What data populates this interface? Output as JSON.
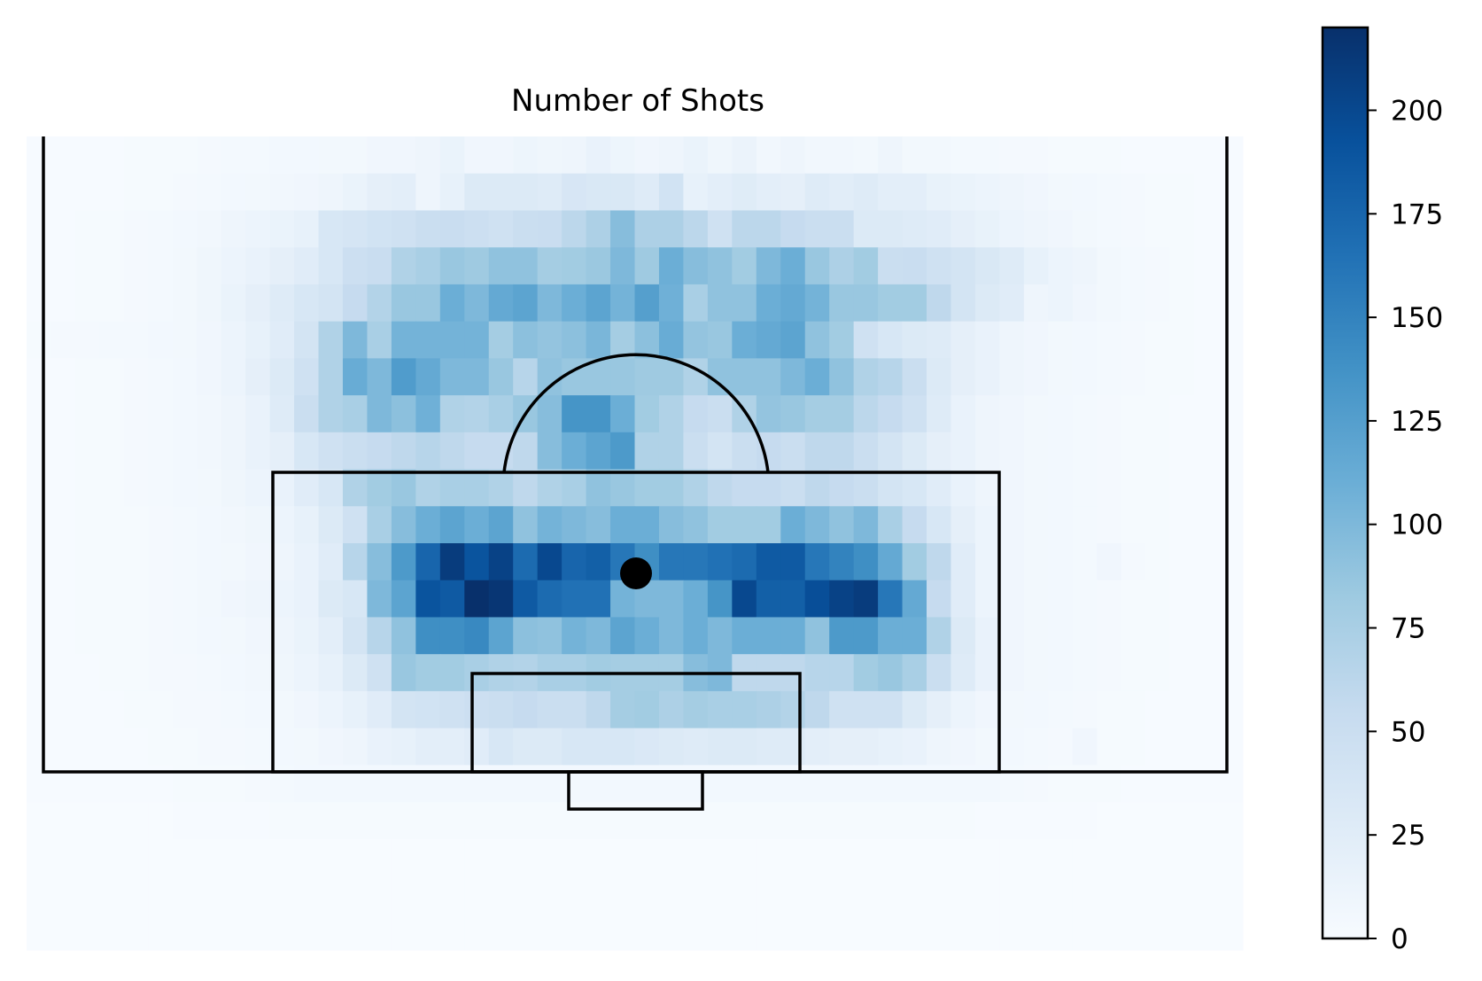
{
  "chart_data": {
    "type": "heatmap",
    "title": "Number of Shots",
    "colormap": "Blues",
    "colorbar": {
      "ticks": [
        0,
        25,
        50,
        75,
        100,
        125,
        150,
        175,
        200
      ],
      "tick_labels": [
        "0",
        "25",
        "50",
        "75",
        "100",
        "125",
        "150",
        "175",
        "200"
      ],
      "vmin": 0,
      "vmax": 220
    },
    "grid": {
      "columns": 50,
      "rows": 22
    },
    "values": [
      [
        1,
        1,
        1,
        1,
        2,
        2,
        2,
        3,
        4,
        4,
        5,
        5,
        6,
        6,
        8,
        8,
        10,
        14,
        8,
        8,
        11,
        9,
        10,
        15,
        11,
        8,
        10,
        14,
        9,
        13,
        7,
        10,
        7,
        7,
        6,
        10,
        6,
        6,
        4,
        4,
        3,
        3,
        2,
        2,
        2,
        1,
        1,
        1,
        1,
        1
      ],
      [
        1,
        1,
        1,
        1,
        2,
        2,
        3,
        4,
        5,
        6,
        7,
        8,
        10,
        14,
        20,
        22,
        10,
        18,
        30,
        30,
        30,
        28,
        36,
        33,
        33,
        28,
        42,
        18,
        22,
        26,
        22,
        20,
        28,
        24,
        28,
        22,
        22,
        16,
        14,
        12,
        10,
        8,
        6,
        5,
        4,
        3,
        2,
        2,
        1,
        1
      ],
      [
        1,
        1,
        2,
        2,
        3,
        4,
        5,
        7,
        10,
        12,
        14,
        18,
        35,
        38,
        42,
        45,
        50,
        52,
        48,
        45,
        50,
        52,
        62,
        72,
        95,
        72,
        72,
        62,
        45,
        62,
        62,
        55,
        50,
        50,
        30,
        30,
        28,
        25,
        20,
        16,
        12,
        10,
        8,
        6,
        4,
        3,
        2,
        2,
        1,
        1
      ],
      [
        1,
        1,
        2,
        2,
        3,
        4,
        6,
        9,
        12,
        15,
        20,
        25,
        35,
        48,
        52,
        70,
        75,
        85,
        82,
        90,
        90,
        78,
        80,
        84,
        100,
        82,
        110,
        95,
        90,
        80,
        100,
        110,
        85,
        72,
        80,
        50,
        52,
        45,
        40,
        33,
        28,
        18,
        12,
        10,
        6,
        4,
        3,
        2,
        1,
        1
      ],
      [
        1,
        1,
        2,
        2,
        3,
        4,
        6,
        9,
        14,
        20,
        28,
        35,
        40,
        55,
        68,
        85,
        85,
        110,
        100,
        115,
        120,
        100,
        110,
        120,
        105,
        125,
        108,
        75,
        90,
        90,
        110,
        115,
        105,
        85,
        85,
        80,
        80,
        60,
        40,
        30,
        25,
        10,
        12,
        8,
        6,
        4,
        3,
        2,
        1,
        1
      ],
      [
        2,
        3,
        3,
        4,
        4,
        5,
        6,
        8,
        12,
        18,
        25,
        40,
        70,
        100,
        75,
        105,
        105,
        105,
        105,
        78,
        92,
        88,
        92,
        102,
        78,
        92,
        112,
        88,
        85,
        110,
        115,
        120,
        90,
        80,
        45,
        35,
        30,
        28,
        20,
        15,
        10,
        8,
        6,
        5,
        4,
        3,
        2,
        2,
        1,
        1
      ],
      [
        1,
        1,
        2,
        2,
        3,
        4,
        5,
        8,
        12,
        20,
        30,
        45,
        70,
        112,
        100,
        128,
        115,
        100,
        100,
        85,
        65,
        90,
        85,
        85,
        85,
        82,
        82,
        70,
        90,
        90,
        90,
        100,
        110,
        90,
        70,
        65,
        50,
        30,
        20,
        15,
        10,
        8,
        6,
        5,
        4,
        3,
        2,
        2,
        1,
        1
      ],
      [
        1,
        1,
        2,
        2,
        3,
        4,
        5,
        7,
        10,
        15,
        28,
        50,
        70,
        75,
        100,
        92,
        108,
        70,
        68,
        75,
        85,
        95,
        135,
        135,
        110,
        80,
        70,
        55,
        50,
        70,
        88,
        85,
        78,
        78,
        62,
        55,
        45,
        28,
        15,
        10,
        8,
        6,
        5,
        4,
        3,
        2,
        2,
        1,
        1,
        1
      ],
      [
        1,
        1,
        2,
        2,
        3,
        4,
        5,
        7,
        10,
        15,
        20,
        35,
        45,
        50,
        55,
        60,
        65,
        60,
        55,
        55,
        60,
        95,
        110,
        120,
        130,
        70,
        70,
        50,
        40,
        50,
        55,
        50,
        60,
        60,
        50,
        40,
        30,
        20,
        15,
        10,
        8,
        6,
        5,
        4,
        3,
        2,
        2,
        1,
        1,
        1
      ],
      [
        1,
        1,
        2,
        2,
        3,
        4,
        5,
        6,
        9,
        12,
        15,
        25,
        35,
        70,
        80,
        85,
        70,
        75,
        75,
        70,
        60,
        70,
        75,
        90,
        85,
        80,
        80,
        70,
        60,
        55,
        55,
        50,
        60,
        55,
        50,
        40,
        35,
        25,
        15,
        10,
        8,
        6,
        5,
        4,
        3,
        2,
        2,
        1,
        1,
        1
      ],
      [
        1,
        1,
        2,
        2,
        2,
        3,
        4,
        5,
        7,
        9,
        12,
        18,
        30,
        45,
        75,
        95,
        110,
        120,
        110,
        120,
        90,
        105,
        100,
        95,
        110,
        110,
        95,
        90,
        80,
        80,
        80,
        110,
        100,
        90,
        100,
        75,
        55,
        35,
        20,
        12,
        8,
        6,
        5,
        4,
        3,
        2,
        2,
        1,
        1,
        1
      ],
      [
        1,
        1,
        2,
        2,
        2,
        3,
        4,
        5,
        6,
        8,
        10,
        15,
        25,
        65,
        95,
        130,
        175,
        210,
        190,
        205,
        170,
        200,
        175,
        180,
        160,
        140,
        160,
        160,
        165,
        170,
        185,
        185,
        160,
        150,
        140,
        115,
        80,
        60,
        25,
        12,
        8,
        6,
        5,
        4,
        8,
        3,
        2,
        1,
        1,
        1
      ],
      [
        1,
        1,
        2,
        2,
        2,
        3,
        4,
        6,
        8,
        10,
        12,
        15,
        30,
        35,
        100,
        120,
        190,
        185,
        220,
        215,
        185,
        170,
        165,
        165,
        105,
        100,
        100,
        110,
        135,
        200,
        180,
        180,
        195,
        205,
        210,
        160,
        115,
        55,
        25,
        12,
        8,
        6,
        5,
        4,
        3,
        2,
        2,
        1,
        1,
        1
      ],
      [
        1,
        1,
        2,
        2,
        2,
        3,
        4,
        5,
        6,
        8,
        10,
        14,
        22,
        40,
        65,
        90,
        140,
        140,
        145,
        120,
        92,
        90,
        105,
        100,
        120,
        110,
        100,
        110,
        100,
        110,
        110,
        110,
        90,
        130,
        130,
        110,
        110,
        70,
        30,
        15,
        8,
        6,
        5,
        4,
        3,
        2,
        2,
        1,
        1,
        1
      ],
      [
        1,
        1,
        1,
        2,
        2,
        3,
        3,
        4,
        5,
        7,
        9,
        12,
        18,
        30,
        45,
        85,
        80,
        80,
        75,
        70,
        68,
        75,
        75,
        80,
        78,
        78,
        78,
        95,
        100,
        60,
        60,
        60,
        65,
        65,
        80,
        85,
        75,
        50,
        28,
        15,
        8,
        6,
        5,
        4,
        3,
        2,
        2,
        1,
        1,
        1
      ],
      [
        1,
        1,
        1,
        1,
        2,
        2,
        3,
        3,
        4,
        5,
        6,
        8,
        12,
        18,
        25,
        40,
        42,
        45,
        48,
        50,
        55,
        50,
        50,
        60,
        78,
        80,
        72,
        78,
        75,
        75,
        72,
        68,
        60,
        45,
        45,
        45,
        30,
        20,
        12,
        8,
        6,
        5,
        4,
        3,
        2,
        2,
        1,
        1,
        1,
        1
      ],
      [
        1,
        1,
        1,
        1,
        1,
        2,
        2,
        3,
        3,
        4,
        5,
        6,
        8,
        10,
        15,
        18,
        22,
        22,
        25,
        35,
        30,
        30,
        35,
        35,
        35,
        32,
        30,
        28,
        30,
        30,
        28,
        28,
        22,
        20,
        20,
        18,
        15,
        10,
        8,
        6,
        5,
        4,
        3,
        8,
        2,
        2,
        1,
        1,
        1,
        1
      ],
      [
        1,
        1,
        1,
        1,
        1,
        1,
        2,
        2,
        2,
        3,
        4,
        5,
        5,
        5,
        5,
        5,
        5,
        5,
        5,
        5,
        5,
        5,
        5,
        5,
        5,
        5,
        5,
        5,
        5,
        5,
        5,
        5,
        5,
        5,
        5,
        5,
        5,
        5,
        5,
        5,
        4,
        3,
        2,
        2,
        2,
        1,
        1,
        1,
        1,
        1
      ],
      [
        0,
        0,
        0,
        0,
        0,
        0,
        1,
        1,
        1,
        1,
        2,
        2,
        2,
        2,
        2,
        2,
        2,
        2,
        2,
        2,
        2,
        2,
        2,
        2,
        2,
        2,
        2,
        2,
        2,
        2,
        2,
        2,
        2,
        2,
        2,
        2,
        2,
        2,
        2,
        1,
        1,
        1,
        1,
        1,
        0,
        0,
        0,
        0,
        0,
        0
      ],
      [
        0,
        0,
        0,
        0,
        0,
        0,
        0,
        0,
        0,
        0,
        0,
        0,
        0,
        0,
        0,
        0,
        0,
        0,
        0,
        0,
        0,
        0,
        0,
        0,
        0,
        0,
        0,
        0,
        0,
        0,
        0,
        0,
        0,
        0,
        0,
        0,
        0,
        0,
        0,
        0,
        0,
        0,
        0,
        0,
        0,
        0,
        0,
        0,
        0,
        0
      ],
      [
        0,
        0,
        0,
        0,
        0,
        0,
        0,
        0,
        0,
        0,
        0,
        0,
        0,
        0,
        0,
        0,
        0,
        0,
        0,
        0,
        0,
        0,
        0,
        0,
        0,
        0,
        0,
        0,
        0,
        0,
        0,
        0,
        0,
        0,
        0,
        0,
        0,
        0,
        0,
        0,
        0,
        0,
        0,
        0,
        0,
        0,
        0,
        0,
        0,
        0
      ],
      [
        0,
        0,
        0,
        0,
        0,
        0,
        0,
        0,
        0,
        0,
        0,
        0,
        0,
        0,
        0,
        0,
        0,
        0,
        0,
        0,
        0,
        0,
        0,
        0,
        0,
        0,
        0,
        0,
        0,
        0,
        0,
        0,
        0,
        0,
        0,
        0,
        0,
        0,
        0,
        0,
        0,
        0,
        0,
        0,
        0,
        0,
        0,
        0,
        0,
        0
      ]
    ]
  }
}
